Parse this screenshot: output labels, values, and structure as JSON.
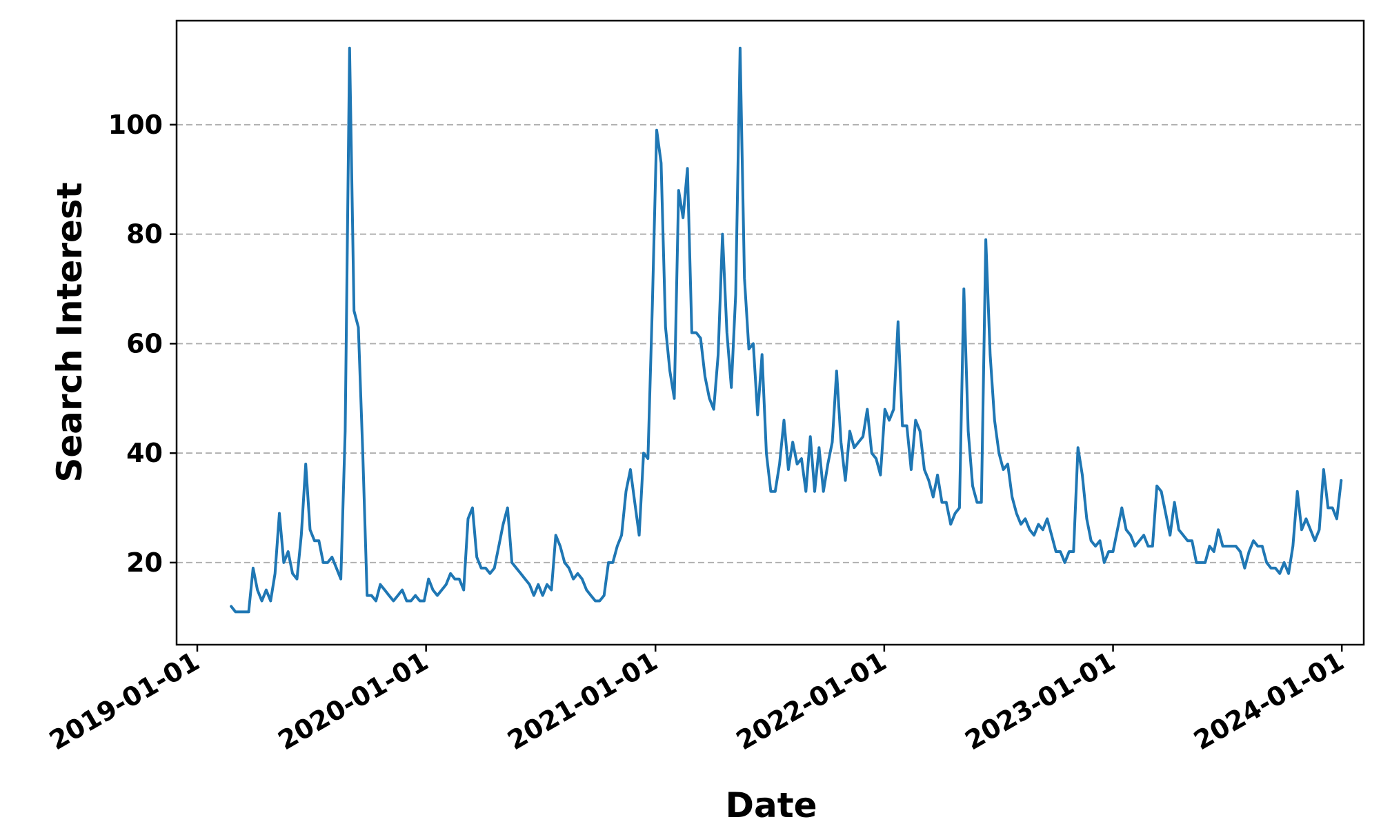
{
  "colors": {
    "line": "#1f77b4",
    "grid": "#b0b0b0",
    "axis": "#000000",
    "background": "#ffffff"
  },
  "chart_data": {
    "type": "line",
    "title": "",
    "xlabel": "Date",
    "ylabel": "Search Interest",
    "x_ticks": [
      "2019-01-01",
      "2020-01-01",
      "2021-01-01",
      "2022-01-01",
      "2023-01-01",
      "2024-01-01"
    ],
    "y_ticks": [
      20,
      40,
      60,
      80,
      100
    ],
    "xlim": [
      "2018-11-29",
      "2024-02-05"
    ],
    "ylim": [
      5,
      119
    ],
    "grid": "horizontal dashed",
    "legend": "none",
    "series": [
      {
        "x": [
          "2019-02-24",
          "2019-03-03",
          "2019-03-10",
          "2019-03-17",
          "2019-03-24",
          "2019-03-31",
          "2019-04-07",
          "2019-04-14",
          "2019-04-21",
          "2019-04-28",
          "2019-05-05",
          "2019-05-12",
          "2019-05-19",
          "2019-05-26",
          "2019-06-02",
          "2019-06-09",
          "2019-06-16",
          "2019-06-23",
          "2019-06-30",
          "2019-07-07",
          "2019-07-14",
          "2019-07-21",
          "2019-07-28",
          "2019-08-04",
          "2019-08-11",
          "2019-08-18",
          "2019-08-25",
          "2019-09-01",
          "2019-09-08",
          "2019-09-15",
          "2019-09-22",
          "2019-09-29",
          "2019-10-06",
          "2019-10-13",
          "2019-10-20",
          "2019-10-27",
          "2019-11-03",
          "2019-11-10",
          "2019-11-17",
          "2019-11-24",
          "2019-12-01",
          "2019-12-08",
          "2019-12-15",
          "2019-12-22",
          "2019-12-29",
          "2020-01-05",
          "2020-01-12",
          "2020-01-19",
          "2020-01-26",
          "2020-02-02",
          "2020-02-09",
          "2020-02-16",
          "2020-02-23",
          "2020-03-01",
          "2020-03-08",
          "2020-03-15",
          "2020-03-22",
          "2020-03-29",
          "2020-04-05",
          "2020-04-12",
          "2020-04-19",
          "2020-04-26",
          "2020-05-03",
          "2020-05-10",
          "2020-05-17",
          "2020-05-24",
          "2020-05-31",
          "2020-06-07",
          "2020-06-14",
          "2020-06-21",
          "2020-06-28",
          "2020-07-05",
          "2020-07-12",
          "2020-07-19",
          "2020-07-26",
          "2020-08-02",
          "2020-08-09",
          "2020-08-16",
          "2020-08-23",
          "2020-08-30",
          "2020-09-06",
          "2020-09-13",
          "2020-09-20",
          "2020-09-27",
          "2020-10-04",
          "2020-10-11",
          "2020-10-18",
          "2020-10-25",
          "2020-11-01",
          "2020-11-08",
          "2020-11-15",
          "2020-11-22",
          "2020-11-29",
          "2020-12-06",
          "2020-12-13",
          "2020-12-20",
          "2020-12-27",
          "2021-01-03",
          "2021-01-10",
          "2021-01-17",
          "2021-01-24",
          "2021-01-31",
          "2021-02-07",
          "2021-02-14",
          "2021-02-21",
          "2021-02-28",
          "2021-03-07",
          "2021-03-14",
          "2021-03-21",
          "2021-03-28",
          "2021-04-04",
          "2021-04-11",
          "2021-04-18",
          "2021-04-25",
          "2021-05-02",
          "2021-05-09",
          "2021-05-16",
          "2021-05-23",
          "2021-05-30",
          "2021-06-06",
          "2021-06-13",
          "2021-06-20",
          "2021-06-27",
          "2021-07-04",
          "2021-07-11",
          "2021-07-18",
          "2021-07-25",
          "2021-08-01",
          "2021-08-08",
          "2021-08-15",
          "2021-08-22",
          "2021-08-29",
          "2021-09-05",
          "2021-09-12",
          "2021-09-19",
          "2021-09-26",
          "2021-10-03",
          "2021-10-10",
          "2021-10-17",
          "2021-10-24",
          "2021-10-31",
          "2021-11-07",
          "2021-11-14",
          "2021-11-21",
          "2021-11-28",
          "2021-12-05",
          "2021-12-12",
          "2021-12-19",
          "2021-12-26",
          "2022-01-02",
          "2022-01-09",
          "2022-01-16",
          "2022-01-23",
          "2022-01-30",
          "2022-02-06",
          "2022-02-13",
          "2022-02-20",
          "2022-02-27",
          "2022-03-06",
          "2022-03-13",
          "2022-03-20",
          "2022-03-27",
          "2022-04-03",
          "2022-04-10",
          "2022-04-17",
          "2022-04-24",
          "2022-05-01",
          "2022-05-08",
          "2022-05-15",
          "2022-05-22",
          "2022-05-29",
          "2022-06-05",
          "2022-06-12",
          "2022-06-19",
          "2022-06-26",
          "2022-07-03",
          "2022-07-10",
          "2022-07-17",
          "2022-07-24",
          "2022-07-31",
          "2022-08-07",
          "2022-08-14",
          "2022-08-21",
          "2022-08-28",
          "2022-09-04",
          "2022-09-11",
          "2022-09-18",
          "2022-09-25",
          "2022-10-02",
          "2022-10-09",
          "2022-10-16",
          "2022-10-23",
          "2022-10-30",
          "2022-11-06",
          "2022-11-13",
          "2022-11-20",
          "2022-11-27",
          "2022-12-04",
          "2022-12-11",
          "2022-12-18",
          "2022-12-25",
          "2023-01-01",
          "2023-01-08",
          "2023-01-15",
          "2023-01-22",
          "2023-01-29",
          "2023-02-05",
          "2023-02-12",
          "2023-02-19",
          "2023-02-26",
          "2023-03-05",
          "2023-03-12",
          "2023-03-19",
          "2023-03-26",
          "2023-04-02",
          "2023-04-09",
          "2023-04-16",
          "2023-04-23",
          "2023-04-30",
          "2023-05-07",
          "2023-05-14",
          "2023-05-21",
          "2023-05-28",
          "2023-06-04",
          "2023-06-11",
          "2023-06-18",
          "2023-06-25",
          "2023-07-02",
          "2023-07-09",
          "2023-07-16",
          "2023-07-23",
          "2023-07-30",
          "2023-08-06",
          "2023-08-13",
          "2023-08-20",
          "2023-08-27",
          "2023-09-03",
          "2023-09-10",
          "2023-09-17",
          "2023-09-24",
          "2023-10-01",
          "2023-10-08",
          "2023-10-15",
          "2023-10-22",
          "2023-10-29",
          "2023-11-05",
          "2023-11-12",
          "2023-11-19",
          "2023-11-26",
          "2023-12-03",
          "2023-12-10",
          "2023-12-17",
          "2023-12-24",
          "2023-12-31"
        ],
        "values": [
          12,
          11,
          11,
          11,
          11,
          19,
          15,
          13,
          15,
          13,
          18,
          29,
          20,
          22,
          18,
          17,
          25,
          38,
          26,
          24,
          24,
          20,
          20,
          21,
          19,
          17,
          44,
          114,
          66,
          63,
          40,
          14,
          14,
          13,
          16,
          15,
          14,
          13,
          14,
          15,
          13,
          13,
          14,
          13,
          13,
          17,
          15,
          14,
          15,
          16,
          18,
          17,
          17,
          15,
          28,
          30,
          21,
          19,
          19,
          18,
          19,
          23,
          27,
          30,
          20,
          19,
          18,
          17,
          16,
          14,
          16,
          14,
          16,
          15,
          25,
          23,
          20,
          19,
          17,
          18,
          17,
          15,
          14,
          13,
          13,
          14,
          20,
          20,
          23,
          25,
          33,
          37,
          31,
          25,
          40,
          39,
          67,
          99,
          93,
          63,
          55,
          50,
          88,
          83,
          92,
          62,
          62,
          61,
          54,
          50,
          48,
          58,
          80,
          62,
          52,
          69,
          114,
          72,
          59,
          60,
          47,
          58,
          40,
          33,
          33,
          38,
          46,
          37,
          42,
          38,
          39,
          33,
          43,
          33,
          41,
          33,
          38,
          42,
          55,
          42,
          35,
          44,
          41,
          42,
          43,
          48,
          40,
          39,
          36,
          48,
          46,
          48,
          64,
          45,
          45,
          37,
          46,
          44,
          37,
          35,
          32,
          36,
          31,
          31,
          27,
          29,
          30,
          70,
          44,
          34,
          31,
          31,
          79,
          58,
          46,
          40,
          37,
          38,
          32,
          29,
          27,
          28,
          26,
          25,
          27,
          26,
          28,
          25,
          22,
          22,
          20,
          22,
          22,
          41,
          36,
          28,
          24,
          23,
          24,
          20,
          22,
          22,
          26,
          30,
          26,
          25,
          23,
          24,
          25,
          23,
          23,
          34,
          33,
          29,
          25,
          31,
          26,
          25,
          24,
          24,
          20,
          20,
          20,
          23,
          22,
          26,
          23,
          23,
          23,
          23,
          22,
          19,
          22,
          24,
          23,
          23,
          20,
          19,
          19,
          18,
          20,
          18,
          23,
          33,
          26,
          28,
          26,
          24,
          26,
          37,
          30,
          30,
          28,
          35
        ]
      }
    ]
  }
}
